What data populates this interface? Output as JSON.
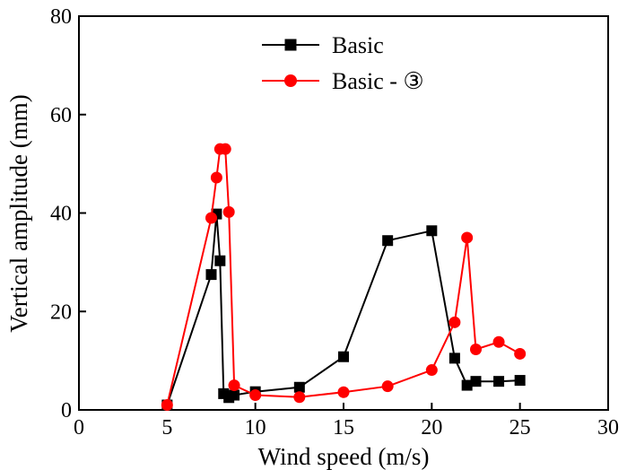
{
  "chart_data": {
    "type": "line",
    "title": "",
    "xlabel": "Wind speed (m/s)",
    "ylabel": "Vertical amplitude (mm)",
    "xlim": [
      0,
      30
    ],
    "ylim": [
      0,
      80
    ],
    "xticks": [
      0,
      5,
      10,
      15,
      20,
      25,
      30
    ],
    "yticks": [
      0,
      20,
      40,
      60,
      80
    ],
    "legend_position": "top-center",
    "grid": false,
    "series": [
      {
        "name": "Basic",
        "color": "#000000",
        "marker": "square",
        "x": [
          5.0,
          7.5,
          7.8,
          8.0,
          8.2,
          8.5,
          8.8,
          10.0,
          12.5,
          15.0,
          17.5,
          20.0,
          21.3,
          22.0,
          22.5,
          23.8,
          25.0
        ],
        "y": [
          1.0,
          27.5,
          39.8,
          30.3,
          3.3,
          2.5,
          3.0,
          3.7,
          4.6,
          10.8,
          34.4,
          36.4,
          10.5,
          5.0,
          5.8,
          5.8,
          6.0
        ]
      },
      {
        "name": "Basic - ③",
        "color": "#ff0000",
        "marker": "circle",
        "x": [
          5.0,
          7.5,
          7.8,
          8.0,
          8.3,
          8.5,
          8.8,
          10.0,
          12.5,
          15.0,
          17.5,
          20.0,
          21.3,
          22.0,
          22.5,
          23.8,
          25.0
        ],
        "y": [
          1.0,
          39.0,
          47.2,
          53.0,
          53.0,
          40.2,
          5.0,
          3.0,
          2.6,
          3.6,
          4.8,
          8.1,
          17.8,
          35.0,
          12.3,
          13.8,
          11.4
        ]
      }
    ]
  }
}
